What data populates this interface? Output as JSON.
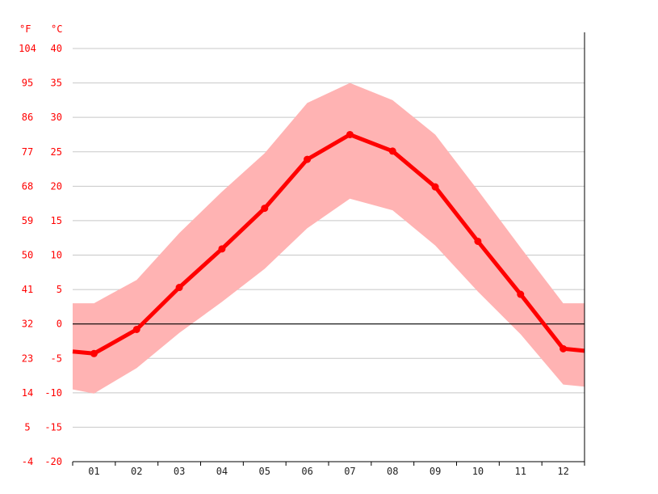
{
  "chart_data": {
    "type": "line",
    "unit_labels": {
      "fahrenheit": "°F",
      "celsius": "°C"
    },
    "categories": [
      "01",
      "02",
      "03",
      "04",
      "05",
      "06",
      "07",
      "08",
      "09",
      "10",
      "11",
      "12"
    ],
    "y_ticks_celsius": [
      "40",
      "35",
      "30",
      "25",
      "20",
      "15",
      "10",
      "5",
      "0",
      "-5",
      "-10",
      "-15",
      "-20"
    ],
    "y_ticks_fahrenheit": [
      "104",
      "95",
      "86",
      "77",
      "68",
      "59",
      "50",
      "41",
      "32",
      "23",
      "14",
      "5",
      "-4"
    ],
    "ylim": [
      -20,
      40
    ],
    "grid": true,
    "series": [
      {
        "role": "mean",
        "values": [
          -4.3,
          -0.8,
          5.3,
          10.9,
          16.8,
          23.9,
          27.5,
          25.1,
          19.9,
          12.0,
          4.3,
          -3.6
        ]
      },
      {
        "role": "max",
        "values": [
          3.0,
          6.4,
          13.2,
          19.2,
          24.8,
          32.1,
          35.0,
          32.5,
          27.5,
          19.4,
          11.1,
          3.0
        ]
      },
      {
        "role": "min",
        "values": [
          -10.1,
          -6.4,
          -1.3,
          3.2,
          8.0,
          13.9,
          18.2,
          16.5,
          11.4,
          4.7,
          -1.5,
          -8.8
        ]
      }
    ],
    "colors": {
      "line": "#ff0000",
      "band": "#ffb3b3",
      "grid": "#c8c8c8",
      "zero": "#000000",
      "axis_text": "#ff0000",
      "x_text": "#222222"
    }
  }
}
